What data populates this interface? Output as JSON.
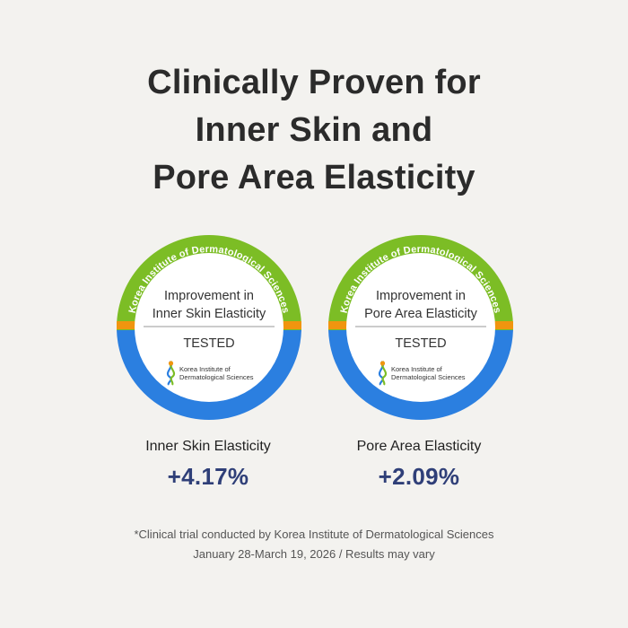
{
  "headline": {
    "line1": "Clinically Proven for",
    "line2": "Inner Skin and",
    "line3": "Pore Area Elasticity"
  },
  "badges": [
    {
      "ring_text": "Korea Institute of Dermatological Sciences",
      "title_line1": "Improvement in",
      "title_line2": "Inner Skin Elasticity",
      "status": "TESTED",
      "logo_line1": "Korea Institute of",
      "logo_line2": "Dermatological Sciences"
    },
    {
      "ring_text": "Korea Institute of Dermatological Sciences",
      "title_line1": "Improvement in",
      "title_line2": "Pore Area Elasticity",
      "status": "TESTED",
      "logo_line1": "Korea Institute of",
      "logo_line2": "Dermatological Sciences"
    }
  ],
  "metrics": [
    {
      "label": "Inner Skin Elasticity",
      "value": "+4.17%"
    },
    {
      "label": "Pore Area Elasticity",
      "value": "+2.09%"
    }
  ],
  "footnote": {
    "line1": "*Clinical trial conducted by Korea Institute of Dermatological Sciences",
    "line2": "January 28-March 19, 2026 / Results may vary"
  },
  "colors": {
    "background": "#f3f2ef",
    "ring_green": "#7cbd25",
    "ring_blue": "#2b7fe0",
    "ring_orange": "#f0950f",
    "value_navy": "#2f3f78"
  }
}
